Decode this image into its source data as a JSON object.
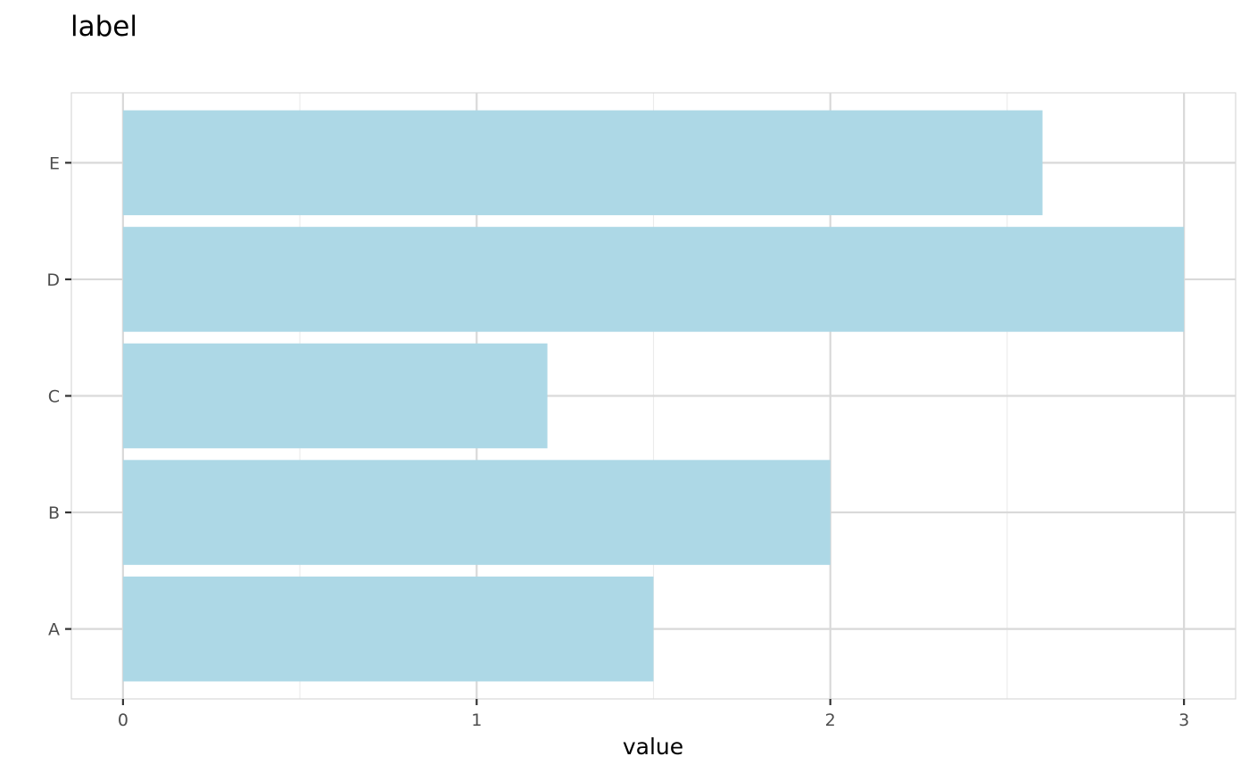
{
  "chart_data": {
    "type": "bar",
    "orientation": "horizontal",
    "title": "label",
    "xlabel": "value",
    "ylabel": "",
    "categories": [
      "A",
      "B",
      "C",
      "D",
      "E"
    ],
    "values": [
      1.5,
      2.0,
      1.2,
      3.0,
      2.6
    ],
    "xlim": [
      -0.146,
      3.146
    ],
    "x_ticks": [
      0,
      1,
      2,
      3
    ],
    "x_tick_labels": [
      "0",
      "1",
      "2",
      "3"
    ],
    "grid": true,
    "legend": "none",
    "colors": {
      "bar": "#add8e6",
      "grid_major": "#d9d9d9",
      "grid_minor": "#ebebeb",
      "panel_border": "#d9d9d9",
      "tick": "#333333"
    }
  }
}
